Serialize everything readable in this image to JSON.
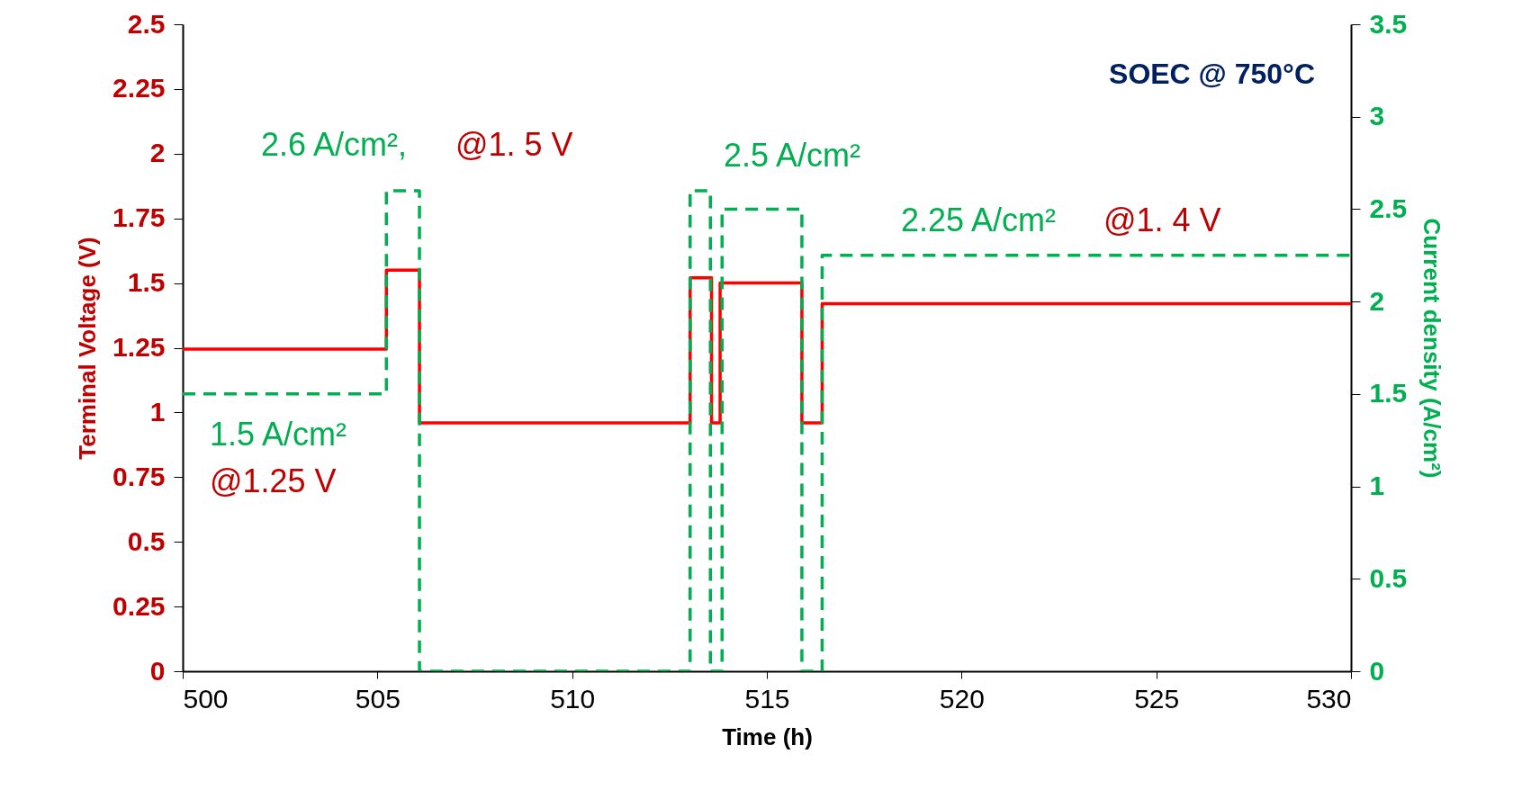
{
  "chart_data": {
    "type": "step",
    "xlabel": "Time (h)",
    "ylabel": "Terminal Voltage (V)",
    "y2label": "Current density (A/cm²)",
    "xlim": [
      500,
      530
    ],
    "xticks": [
      500,
      505,
      510,
      515,
      520,
      525,
      530
    ],
    "ylim": [
      0,
      2.5
    ],
    "yticks": [
      0,
      0.25,
      0.5,
      0.75,
      1,
      1.25,
      1.5,
      1.75,
      2,
      2.25,
      2.5
    ],
    "y2lim": [
      0,
      3.5
    ],
    "y2ticks": [
      0,
      0.5,
      1,
      1.5,
      2,
      2.5,
      3,
      3.5
    ],
    "grid": false,
    "series": [
      {
        "color": "#ff0000",
        "line_style": "solid",
        "x": [
          500,
          505.23,
          506.08,
          513.03,
          513.58,
          513.8,
          515.9,
          516.42,
          530
        ],
        "values": [
          1.245,
          1.55,
          0.96,
          1.52,
          0.96,
          1.5,
          0.96,
          1.42,
          1.42
        ]
      },
      {
        "color": "#00b050",
        "line_style": "dashed",
        "axis": "y2",
        "x": [
          500,
          505.23,
          506.08,
          513.03,
          513.55,
          513.85,
          515.9,
          516.42,
          530
        ],
        "values": [
          1.5,
          2.6,
          0,
          2.6,
          0,
          2.5,
          0,
          2.25,
          2.25
        ]
      }
    ],
    "annotations": [
      "SOEC @ 750°C",
      "2.6 A/cm²,",
      "@1. 5 V",
      "2.5 A/cm²",
      "2.25 A/cm²",
      "@1. 4 V",
      "1.5 A/cm²",
      "@1.25 V"
    ]
  }
}
